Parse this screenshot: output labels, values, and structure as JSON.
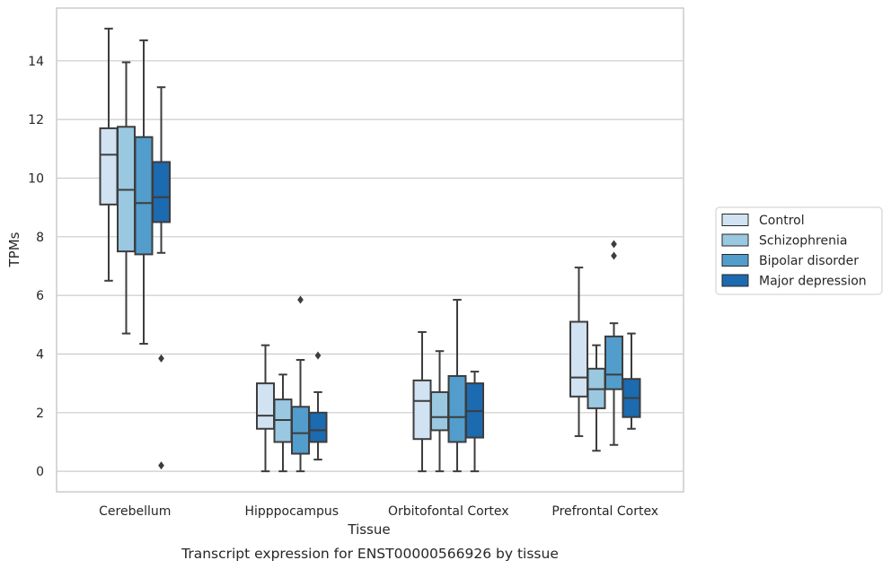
{
  "chart_data": {
    "type": "box",
    "title": "",
    "caption": "Transcript expression for ENST00000566926 by tissue",
    "xlabel": "Tissue",
    "ylabel": "TPMs",
    "ylim": [
      -0.7,
      15.8
    ],
    "yticks": [
      0,
      2,
      4,
      6,
      8,
      10,
      12,
      14
    ],
    "grid": "horizontal",
    "legend_position": "right",
    "categories": [
      "Cerebellum",
      "Hipppocampus",
      "Orbitofontal Cortex",
      "Prefrontal Cortex"
    ],
    "series": [
      {
        "name": "Control",
        "color": "#d1e2f2",
        "boxes": [
          {
            "whislo": 6.5,
            "q1": 9.1,
            "med": 10.8,
            "q3": 11.7,
            "whishi": 15.1,
            "fliers": []
          },
          {
            "whislo": 0.0,
            "q1": 1.45,
            "med": 1.9,
            "q3": 3.0,
            "whishi": 4.3,
            "fliers": []
          },
          {
            "whislo": 0.0,
            "q1": 1.1,
            "med": 2.4,
            "q3": 3.1,
            "whishi": 4.75,
            "fliers": []
          },
          {
            "whislo": 1.2,
            "q1": 2.55,
            "med": 3.2,
            "q3": 5.1,
            "whishi": 6.95,
            "fliers": []
          }
        ]
      },
      {
        "name": "Schizophrenia",
        "color": "#9ac8e0",
        "boxes": [
          {
            "whislo": 4.7,
            "q1": 7.5,
            "med": 9.6,
            "q3": 11.75,
            "whishi": 13.95,
            "fliers": []
          },
          {
            "whislo": 0.0,
            "q1": 1.0,
            "med": 1.75,
            "q3": 2.45,
            "whishi": 3.3,
            "fliers": []
          },
          {
            "whislo": 0.0,
            "q1": 1.4,
            "med": 1.85,
            "q3": 2.7,
            "whishi": 4.1,
            "fliers": []
          },
          {
            "whislo": 0.7,
            "q1": 2.15,
            "med": 2.8,
            "q3": 3.5,
            "whishi": 4.3,
            "fliers": []
          }
        ]
      },
      {
        "name": "Bipolar disorder",
        "color": "#529dcc",
        "boxes": [
          {
            "whislo": 4.35,
            "q1": 7.4,
            "med": 9.15,
            "q3": 11.4,
            "whishi": 14.7,
            "fliers": []
          },
          {
            "whislo": 0.0,
            "q1": 0.6,
            "med": 1.3,
            "q3": 2.2,
            "whishi": 3.8,
            "fliers": [
              5.85
            ]
          },
          {
            "whislo": 0.0,
            "q1": 1.0,
            "med": 1.85,
            "q3": 3.25,
            "whishi": 5.85,
            "fliers": []
          },
          {
            "whislo": 0.9,
            "q1": 2.8,
            "med": 3.3,
            "q3": 4.6,
            "whishi": 5.05,
            "fliers": [
              7.35,
              7.75
            ]
          }
        ]
      },
      {
        "name": "Major depression",
        "color": "#1c6aaf",
        "boxes": [
          {
            "whislo": 7.45,
            "q1": 8.5,
            "med": 9.35,
            "q3": 10.55,
            "whishi": 13.1,
            "fliers": [
              3.85,
              0.2
            ]
          },
          {
            "whislo": 0.4,
            "q1": 1.0,
            "med": 1.4,
            "q3": 2.0,
            "whishi": 2.7,
            "fliers": [
              3.95
            ]
          },
          {
            "whislo": 0.0,
            "q1": 1.15,
            "med": 2.05,
            "q3": 3.0,
            "whishi": 3.4,
            "fliers": []
          },
          {
            "whislo": 1.45,
            "q1": 1.85,
            "med": 2.5,
            "q3": 3.15,
            "whishi": 4.7,
            "fliers": []
          }
        ]
      }
    ]
  }
}
